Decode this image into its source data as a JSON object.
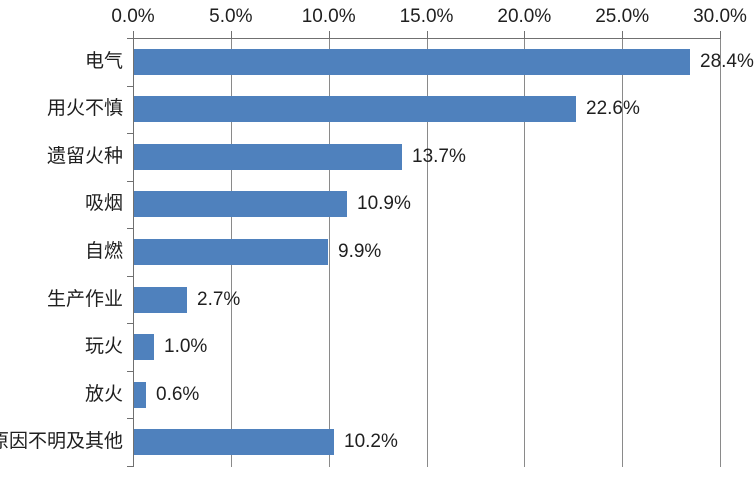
{
  "chart_data": {
    "type": "bar",
    "orientation": "horizontal",
    "title": "",
    "xlabel": "",
    "ylabel": "",
    "categories": [
      "电气",
      "用火不慎",
      "遗留火种",
      "吸烟",
      "自燃",
      "生产作业",
      "玩火",
      "放火",
      "原因不明及其他"
    ],
    "values": [
      28.4,
      22.6,
      13.7,
      10.9,
      9.9,
      2.7,
      1.0,
      0.6,
      10.2
    ],
    "value_labels": [
      "28.4%",
      "22.6%",
      "13.7%",
      "10.9%",
      "9.9%",
      "2.7%",
      "1.0%",
      "0.6%",
      "10.2%"
    ],
    "x_ticks": [
      "0.0%",
      "5.0%",
      "10.0%",
      "15.0%",
      "20.0%",
      "25.0%",
      "30.0%"
    ],
    "x_tick_values": [
      0,
      5,
      10,
      15,
      20,
      25,
      30
    ],
    "xlim": [
      0,
      30
    ],
    "grid": true,
    "legend_position": "none",
    "axis_position": "top",
    "colors": {
      "bar": "#4F81BD",
      "gridline": "#8a8a8a",
      "axis": "#707070",
      "text": "#1f1f1f",
      "background": "#ffffff"
    }
  }
}
